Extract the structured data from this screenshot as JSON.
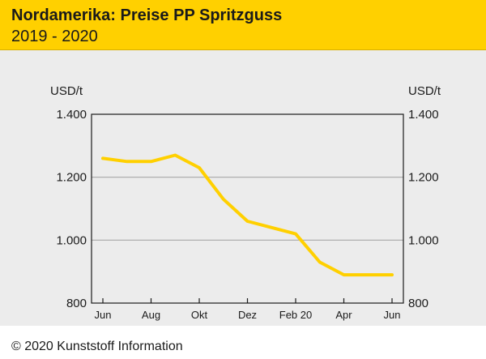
{
  "header": {
    "title": "Nordamerika: Preise PP Spritzguss",
    "subtitle": "2019 - 2020"
  },
  "footer": {
    "copyright": "© 2020 Kunststoff Information"
  },
  "colors": {
    "header_bg": "#ffd000",
    "line": "#ffd000",
    "panel_bg": "#ececec",
    "grid": "#a8a8a8"
  },
  "chart_data": {
    "type": "line",
    "title": "Nordamerika: Preise PP Spritzguss",
    "subtitle": "2019 - 2020",
    "ylabel_left": "USD/t",
    "ylabel_right": "USD/t",
    "ylim": [
      800,
      1400
    ],
    "yticks": [
      800,
      1000,
      1200,
      1400
    ],
    "ytick_labels": [
      "800",
      "1.000",
      "1.200",
      "1.400"
    ],
    "xtick_labels": [
      "Jun",
      "Aug",
      "Okt",
      "Dez",
      "Feb 20",
      "Apr",
      "Jun"
    ],
    "grid": "horizontal",
    "series": [
      {
        "x": [
          "Jun 2019",
          "Jul 2019",
          "Aug 2019",
          "Sep 2019",
          "Okt 2019",
          "Nov 2019",
          "Dez 2019",
          "Jan 2020",
          "Feb 2020",
          "Mär 2020",
          "Apr 2020",
          "Mai 2020",
          "Jun 2020"
        ],
        "values": [
          1260,
          1250,
          1250,
          1270,
          1230,
          1130,
          1060,
          1040,
          1020,
          930,
          890,
          890,
          890
        ]
      }
    ]
  }
}
